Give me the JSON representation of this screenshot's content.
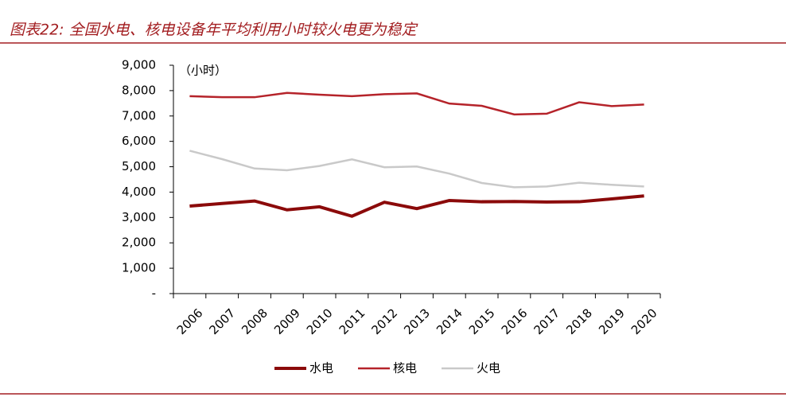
{
  "chart_data": {
    "type": "line",
    "title": "图表22: 全国水电、核电设备年平均利用小时较火电更为稳定",
    "unit_label": "（小时）",
    "categories": [
      "2006",
      "2007",
      "2008",
      "2009",
      "2010",
      "2011",
      "2012",
      "2013",
      "2014",
      "2015",
      "2016",
      "2017",
      "2018",
      "2019",
      "2020"
    ],
    "series": [
      {
        "name": "水电",
        "color": "#8b0a0a",
        "width": 4,
        "values": [
          3450,
          3550,
          3650,
          3300,
          3420,
          3050,
          3600,
          3350,
          3670,
          3620,
          3630,
          3610,
          3620,
          3730,
          3850
        ]
      },
      {
        "name": "核电",
        "color": "#b5232a",
        "width": 2.5,
        "values": [
          7780,
          7740,
          7740,
          7910,
          7840,
          7780,
          7860,
          7890,
          7490,
          7400,
          7060,
          7090,
          7540,
          7390,
          7450
        ]
      },
      {
        "name": "火电",
        "color": "#c9c9c9",
        "width": 2.5,
        "values": [
          5630,
          5300,
          4930,
          4860,
          5030,
          5290,
          4980,
          5010,
          4730,
          4360,
          4190,
          4220,
          4370,
          4290,
          4220
        ]
      }
    ],
    "ylim": [
      0,
      9000
    ],
    "yticks": [
      {
        "value": 0,
        "label": "-"
      },
      {
        "value": 1000,
        "label": "1,000"
      },
      {
        "value": 2000,
        "label": "2,000"
      },
      {
        "value": 3000,
        "label": "3,000"
      },
      {
        "value": 4000,
        "label": "4,000"
      },
      {
        "value": 5000,
        "label": "5,000"
      },
      {
        "value": 6000,
        "label": "6,000"
      },
      {
        "value": 7000,
        "label": "7,000"
      },
      {
        "value": 8000,
        "label": "8,000"
      },
      {
        "value": 9000,
        "label": "9,000"
      }
    ],
    "grid": false
  }
}
